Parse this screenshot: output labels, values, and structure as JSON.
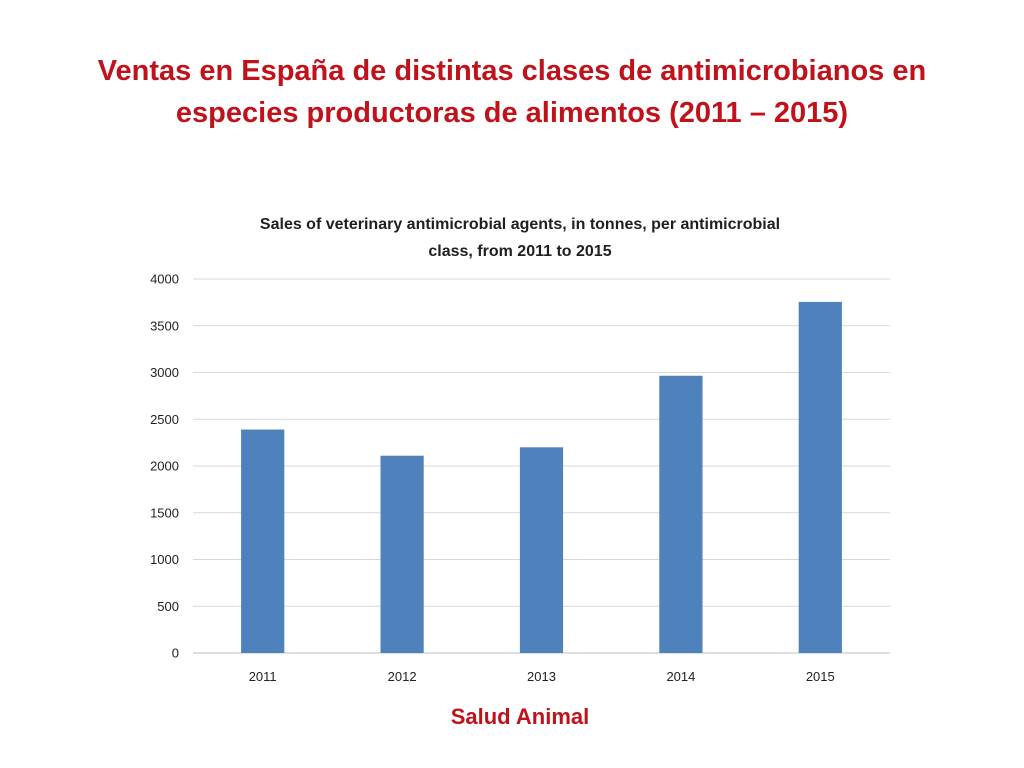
{
  "slide": {
    "title": "Ventas en España de distintas clases de antimicrobianos en especies productoras de alimentos (2011 – 2015)",
    "footer": "Salud Animal"
  },
  "colors": {
    "title": "#c0121b",
    "bar": "#4f81bd",
    "grid": "#d9d9d9",
    "axis": "#bfbfbf"
  },
  "chart_data": {
    "type": "bar",
    "title_lines": [
      "Sales of veterinary antimicrobial agents, in tonnes, per antimicrobial",
      "class, from 2011 to 2015"
    ],
    "categories": [
      "2011",
      "2012",
      "2013",
      "2014",
      "2015"
    ],
    "values": [
      2390,
      2110,
      2200,
      2965,
      3755
    ],
    "xlabel": "",
    "ylabel": "",
    "ylim": [
      0,
      4000
    ],
    "yticks": [
      0,
      500,
      1000,
      1500,
      2000,
      2500,
      3000,
      3500,
      4000
    ],
    "grid": true,
    "legend": "none"
  }
}
